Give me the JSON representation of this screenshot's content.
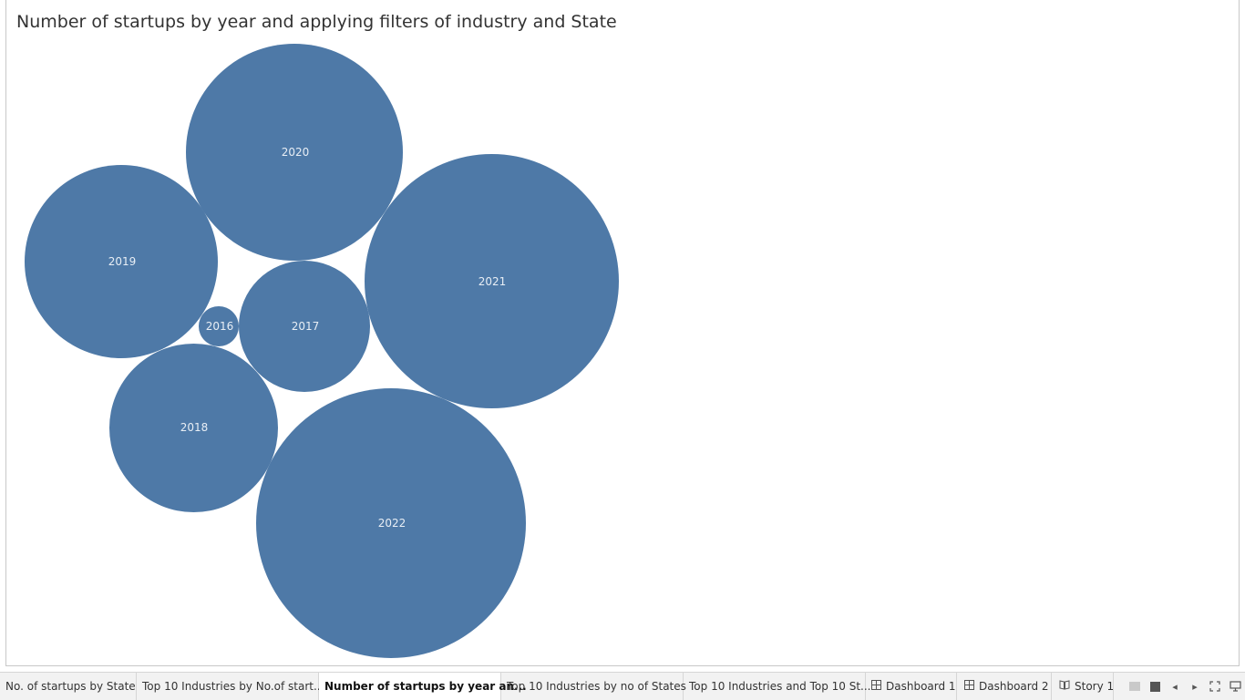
{
  "sheet_title": "Number of startups by year and applying filters of industry and State",
  "bubbles": [
    {
      "label": "2020"
    },
    {
      "label": "2019"
    },
    {
      "label": "2021"
    },
    {
      "label": "2016"
    },
    {
      "label": "2017"
    },
    {
      "label": "2018"
    },
    {
      "label": "2022"
    }
  ],
  "tabs": [
    {
      "label": "No. of startups by State",
      "icon": ""
    },
    {
      "label": "Top 10 Industries by No.of start...",
      "icon": ""
    },
    {
      "label": "Number of startups by year an...",
      "icon": "",
      "active": true
    },
    {
      "label": "Top 10 Industries by no of States",
      "icon": ""
    },
    {
      "label": "Top 10 Industries and Top 10 St...",
      "icon": ""
    },
    {
      "label": "Dashboard 1",
      "icon": "grid-icon"
    },
    {
      "label": "Dashboard 2",
      "icon": "grid-icon"
    },
    {
      "label": "Story 1",
      "icon": "book-icon"
    }
  ],
  "colors": {
    "bubble": "#4e79a7",
    "label": "#e8eef5"
  }
}
